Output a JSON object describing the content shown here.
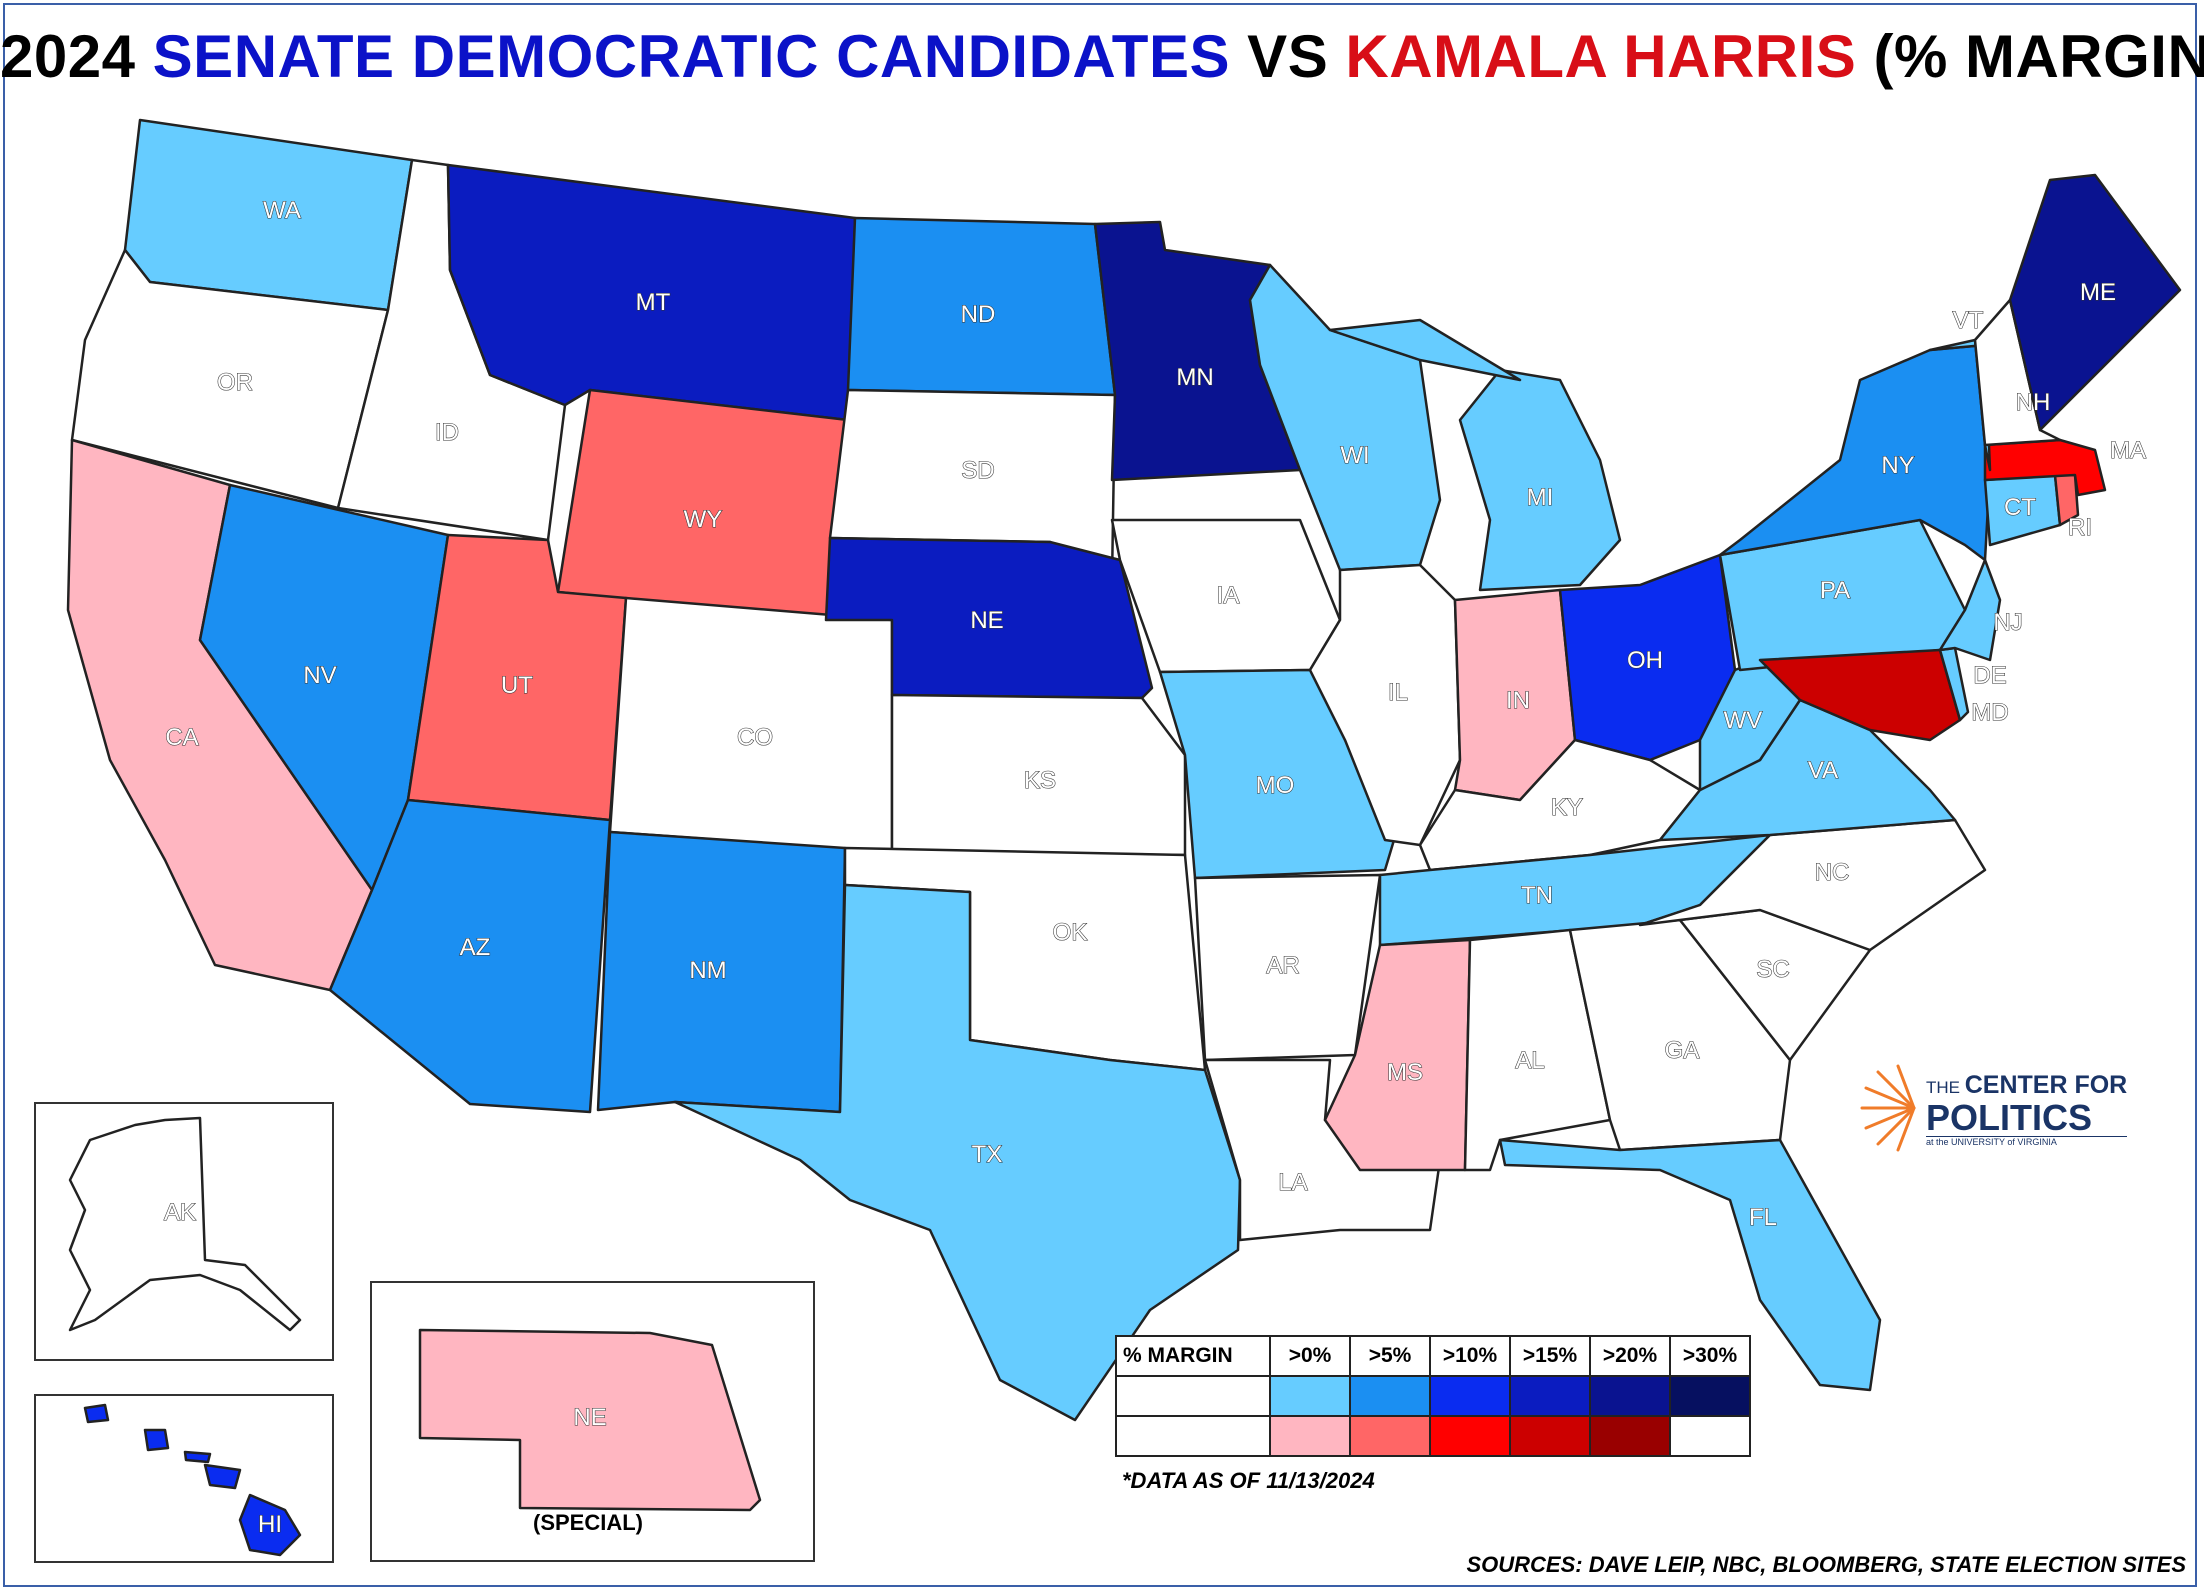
{
  "title": {
    "part1": "2024",
    "part2": "SENATE DEMOCRATIC CANDIDATES",
    "part3": "VS",
    "part4": "KAMALA HARRIS",
    "part5": "(% MARGINS)"
  },
  "colors": {
    "none": "#ffffff",
    "d0": "#66ccff",
    "d5": "#1b8ff2",
    "d10": "#0a2cf0",
    "d15": "#0b1cc0",
    "d20": "#0a1390",
    "d30": "#061060",
    "r0": "#ffb6c1",
    "r5": "#ff6666",
    "r10": "#ff0000",
    "r15": "#cc0000",
    "r20": "#990000",
    "r30": "#ffffff"
  },
  "states": [
    {
      "abbr": "WA",
      "fill": "d0"
    },
    {
      "abbr": "OR",
      "fill": "none"
    },
    {
      "abbr": "CA",
      "fill": "r0"
    },
    {
      "abbr": "ID",
      "fill": "none"
    },
    {
      "abbr": "NV",
      "fill": "d5"
    },
    {
      "abbr": "MT",
      "fill": "d15"
    },
    {
      "abbr": "WY",
      "fill": "r5"
    },
    {
      "abbr": "UT",
      "fill": "r5"
    },
    {
      "abbr": "AZ",
      "fill": "d5"
    },
    {
      "abbr": "CO",
      "fill": "none"
    },
    {
      "abbr": "NM",
      "fill": "d5"
    },
    {
      "abbr": "ND",
      "fill": "d5"
    },
    {
      "abbr": "SD",
      "fill": "none"
    },
    {
      "abbr": "NE",
      "fill": "d15"
    },
    {
      "abbr": "KS",
      "fill": "none"
    },
    {
      "abbr": "OK",
      "fill": "none"
    },
    {
      "abbr": "TX",
      "fill": "d0"
    },
    {
      "abbr": "MN",
      "fill": "d20"
    },
    {
      "abbr": "IA",
      "fill": "none"
    },
    {
      "abbr": "MO",
      "fill": "d0"
    },
    {
      "abbr": "AR",
      "fill": "none"
    },
    {
      "abbr": "LA",
      "fill": "none"
    },
    {
      "abbr": "WI",
      "fill": "d0"
    },
    {
      "abbr": "IL",
      "fill": "none"
    },
    {
      "abbr": "MI",
      "fill": "d0"
    },
    {
      "abbr": "IN",
      "fill": "r0"
    },
    {
      "abbr": "OH",
      "fill": "d10"
    },
    {
      "abbr": "KY",
      "fill": "none"
    },
    {
      "abbr": "TN",
      "fill": "d0"
    },
    {
      "abbr": "MS",
      "fill": "r0"
    },
    {
      "abbr": "AL",
      "fill": "none"
    },
    {
      "abbr": "GA",
      "fill": "none"
    },
    {
      "abbr": "FL",
      "fill": "d0"
    },
    {
      "abbr": "SC",
      "fill": "none"
    },
    {
      "abbr": "NC",
      "fill": "none"
    },
    {
      "abbr": "VA",
      "fill": "d0"
    },
    {
      "abbr": "WV",
      "fill": "d0"
    },
    {
      "abbr": "PA",
      "fill": "d0"
    },
    {
      "abbr": "NY",
      "fill": "d5"
    },
    {
      "abbr": "VT",
      "fill": "d0"
    },
    {
      "abbr": "NH",
      "fill": "none"
    },
    {
      "abbr": "ME",
      "fill": "d20"
    },
    {
      "abbr": "MA",
      "fill": "r10"
    },
    {
      "abbr": "RI",
      "fill": "r5"
    },
    {
      "abbr": "CT",
      "fill": "d0"
    },
    {
      "abbr": "NJ",
      "fill": "d0"
    },
    {
      "abbr": "DE",
      "fill": "d0"
    },
    {
      "abbr": "MD",
      "fill": "r15"
    },
    {
      "abbr": "AK",
      "fill": "none"
    },
    {
      "abbr": "HI",
      "fill": "d10"
    }
  ],
  "inset_special": {
    "state": "NE",
    "label": "(SPECIAL)"
  },
  "legend": {
    "header": "% MARGIN",
    "columns": [
      ">0%",
      ">5%",
      ">10%",
      ">15%",
      ">20%",
      ">30%"
    ],
    "dem_row": [
      "d0",
      "d5",
      "d10",
      "d15",
      "d20",
      "d30"
    ],
    "rep_row": [
      "r0",
      "r5",
      "r10",
      "r15",
      "r20",
      "r30"
    ]
  },
  "note": "*DATA AS OF 11/13/2024",
  "sources": "SOURCES: DAVE LEIP, NBC, BLOOMBERG, STATE ELECTION SITES",
  "logo": {
    "line1a": "THE",
    "line1b": "CENTER FOR",
    "line2": "POLITICS",
    "line3": "at the UNIVERSITY of VIRGINIA"
  }
}
